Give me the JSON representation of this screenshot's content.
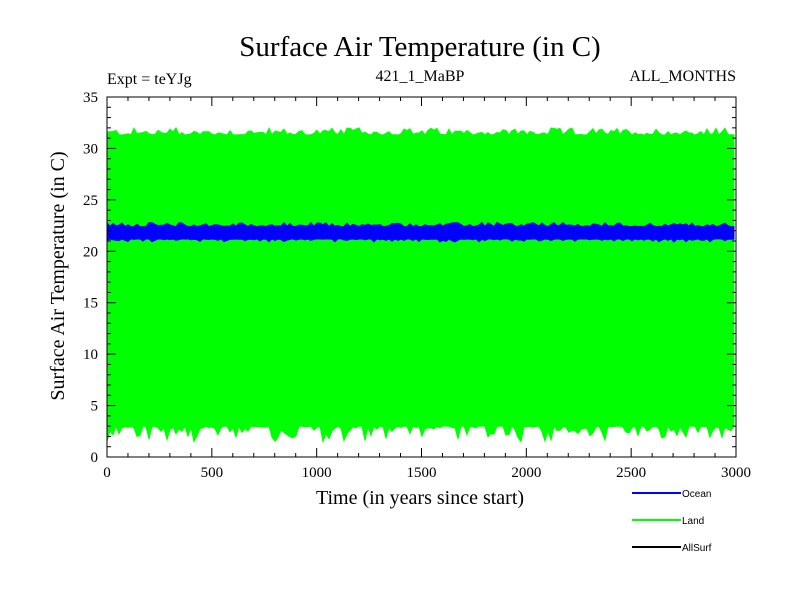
{
  "chart_data": {
    "type": "line",
    "title": "Surface Air Temperature (in C)",
    "subtitle_left": "Expt = teYJg",
    "subtitle_center": "421_1_MaBP",
    "subtitle_right": "ALL_MONTHS",
    "xlabel": "Time (in years since start)",
    "ylabel": "Surface Air Temperature (in C)",
    "xlim": [
      0,
      3000
    ],
    "ylim": [
      0,
      35
    ],
    "x_ticks": [
      0,
      500,
      1000,
      1500,
      2000,
      2500,
      3000
    ],
    "x_tick_labels": [
      "0",
      "500",
      "1000",
      "1500",
      "2000",
      "2500",
      "3000"
    ],
    "y_ticks": [
      0,
      5,
      10,
      15,
      20,
      25,
      30,
      35
    ],
    "y_tick_labels": [
      "0",
      "5",
      "10",
      "15",
      "20",
      "25",
      "30",
      "35"
    ],
    "x_minor_step": 100,
    "y_minor_step": 1,
    "legend_position": "bottom-right",
    "series": [
      {
        "name": "Land",
        "color": "#00ff00",
        "band_min": 1.5,
        "band_low": 3.0,
        "band_high": 31.3,
        "band_max": 32.0
      },
      {
        "name": "Ocean",
        "color": "#0000ff",
        "band_min": 20.9,
        "band_low": 21.2,
        "band_high": 22.4,
        "band_max": 22.8
      },
      {
        "name": "AllSurf",
        "color": "#000000",
        "band_min": null,
        "band_low": null,
        "band_high": null,
        "band_max": null
      }
    ],
    "legend": [
      {
        "name": "Ocean",
        "color": "#0000ff"
      },
      {
        "name": "Land",
        "color": "#00ff00"
      },
      {
        "name": "AllSurf",
        "color": "#000000"
      }
    ]
  }
}
